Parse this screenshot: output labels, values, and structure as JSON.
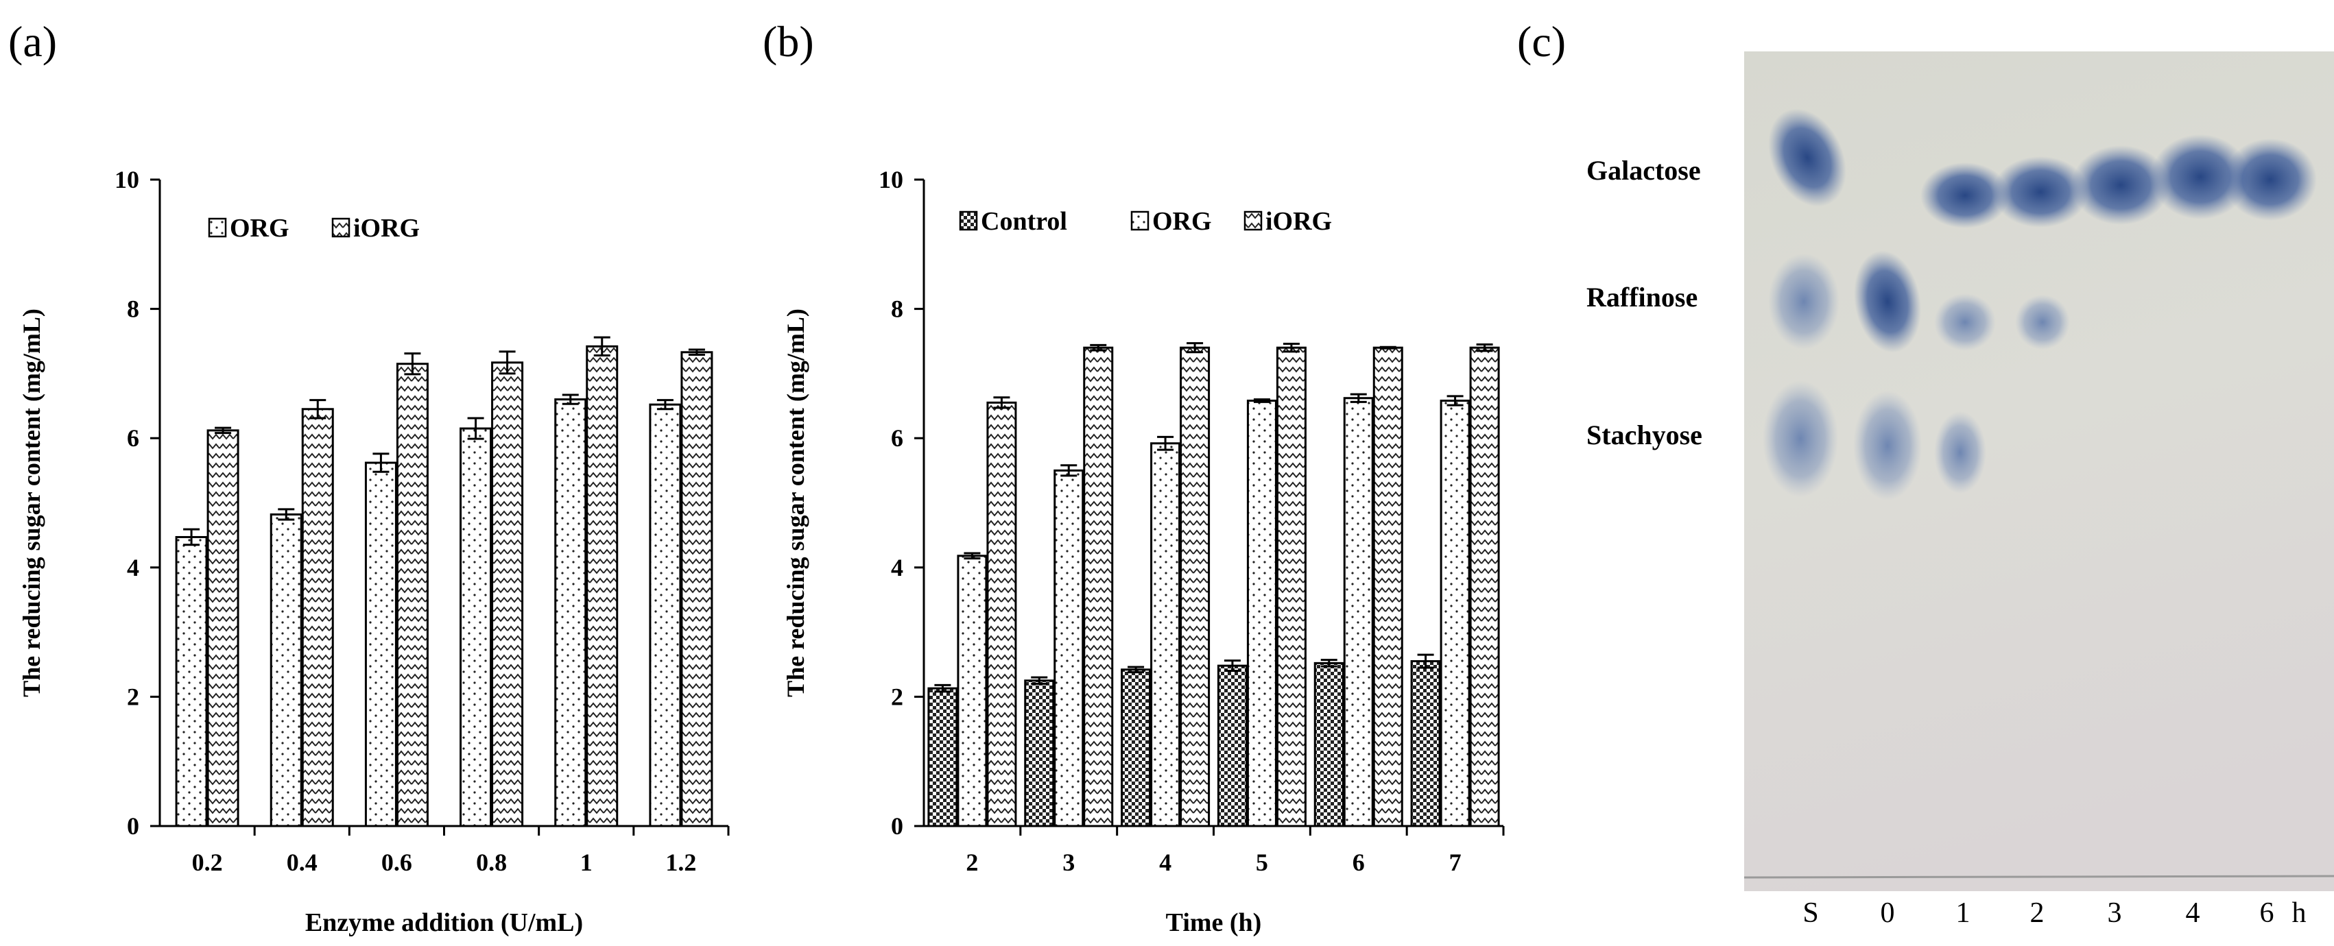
{
  "panels": {
    "a": {
      "label": "(a)"
    },
    "b": {
      "label": "(b)"
    },
    "c": {
      "label": "(c)"
    }
  },
  "chart_data": [
    {
      "type": "bar",
      "panel": "a",
      "xlabel": "Enzyme addition (U/mL)",
      "ylabel": "The  reducing sugar content  (mg/mL)",
      "ylim": [
        0,
        10
      ],
      "yticks": [
        0,
        2,
        4,
        6,
        8,
        10
      ],
      "categories": [
        "0.2",
        "0.4",
        "0.6",
        "0.8",
        "1",
        "1.2"
      ],
      "legend_position": "top-left",
      "series": [
        {
          "name": "ORG",
          "pattern": "dots",
          "values": [
            4.47,
            4.82,
            5.62,
            6.15,
            6.6,
            6.52
          ],
          "errors": [
            0.12,
            0.08,
            0.14,
            0.16,
            0.07,
            0.07
          ]
        },
        {
          "name": "iORG",
          "pattern": "zigzag",
          "values": [
            6.12,
            6.45,
            7.15,
            7.17,
            7.42,
            7.33
          ],
          "errors": [
            0.04,
            0.14,
            0.16,
            0.17,
            0.14,
            0.04
          ]
        }
      ]
    },
    {
      "type": "bar",
      "panel": "b",
      "xlabel": "Time (h)",
      "ylabel": "The  reducing sugar content (mg/mL)",
      "ylim": [
        0,
        10
      ],
      "yticks": [
        0,
        2,
        4,
        6,
        8,
        10
      ],
      "categories": [
        "2",
        "3",
        "4",
        "5",
        "6",
        "7"
      ],
      "legend_position": "top-left",
      "series": [
        {
          "name": "Control",
          "pattern": "checker",
          "values": [
            2.13,
            2.25,
            2.42,
            2.48,
            2.52,
            2.55
          ],
          "errors": [
            0.05,
            0.05,
            0.04,
            0.08,
            0.05,
            0.1
          ]
        },
        {
          "name": "ORG",
          "pattern": "dots",
          "values": [
            4.18,
            5.5,
            5.92,
            6.58,
            6.62,
            6.58
          ],
          "errors": [
            0.04,
            0.08,
            0.1,
            0.02,
            0.06,
            0.07
          ]
        },
        {
          "name": "iORG",
          "pattern": "zigzag",
          "values": [
            6.55,
            7.4,
            7.4,
            7.4,
            7.4,
            7.4
          ],
          "errors": [
            0.08,
            0.04,
            0.07,
            0.06,
            0.01,
            0.05
          ]
        }
      ]
    }
  ],
  "tlc": {
    "compounds": [
      "Galactose",
      "Raffinose",
      "Stachyose"
    ],
    "lanes": [
      "S",
      "0",
      "1",
      "2",
      "3",
      "4",
      "6"
    ],
    "unit": "h"
  }
}
